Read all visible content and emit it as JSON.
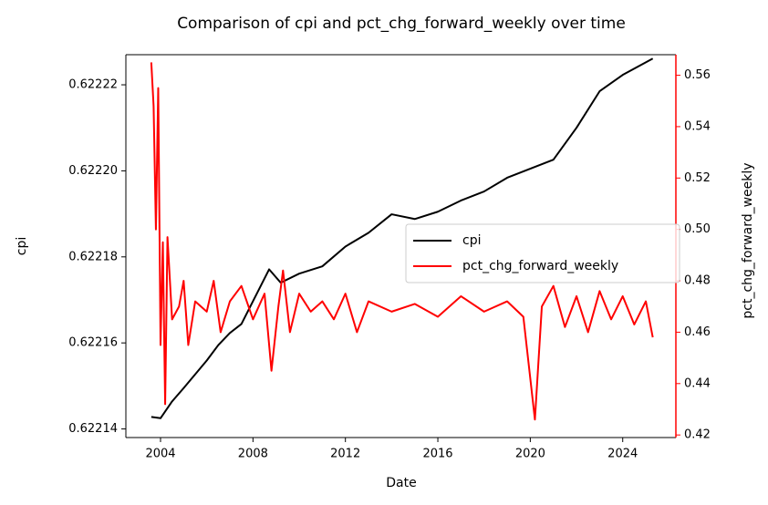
{
  "chart_data": {
    "type": "line",
    "title": "Comparison of cpi and pct_chg_forward_weekly over time",
    "x_label": "Date",
    "y_label": "cpi",
    "y2_label": "pct_chg_forward_weekly",
    "xlim": [
      2002.5,
      2026.3
    ],
    "xticks": [
      2004,
      2008,
      2012,
      2016,
      2020,
      2024
    ],
    "ylim": [
      0.622138,
      0.622227
    ],
    "yticks": [
      0.62214,
      0.62216,
      0.62218,
      {
        "value": 0.6222,
        "label": "0.62220"
      },
      0.62222
    ],
    "y2lim": [
      0.419,
      0.568
    ],
    "y2ticks": [
      0.42,
      0.44,
      0.46,
      0.48,
      {
        "value": 0.5,
        "label": "0.50"
      },
      0.52,
      0.54,
      0.56
    ],
    "y2_color": "red",
    "legend": "center right",
    "series": [
      {
        "name": "cpi",
        "color": "black",
        "x": [
          2003.6,
          2004.0,
          2004.5,
          2005,
          2005.5,
          2006,
          2006.5,
          2007,
          2007.5,
          2008,
          2008.7,
          2009.2,
          2010,
          2011,
          2012,
          2013,
          2014,
          2015,
          2016,
          2017,
          2018,
          2019,
          2020,
          2021,
          2022,
          2023,
          2024,
          2025.3
        ],
        "values": [
          0.6221428,
          0.6221425,
          0.6221464,
          0.6221495,
          0.6221527,
          0.6221559,
          0.6221595,
          0.6221623,
          0.6221644,
          0.6221697,
          0.6221771,
          0.622174,
          0.6221761,
          0.6221778,
          0.6221824,
          0.6221856,
          0.6221899,
          0.6221888,
          0.6221905,
          0.6221931,
          0.6221952,
          0.6221984,
          0.6222005,
          0.6222026,
          0.62221,
          0.6222185,
          0.6222223,
          0.6222261
        ]
      },
      {
        "name": "pct_chg_forward_weekly",
        "color": "red",
        "axis": "y2",
        "x": [
          2003.6,
          2003.7,
          2003.8,
          2003.9,
          2004.0,
          2004.1,
          2004.2,
          2004.3,
          2004.5,
          2004.8,
          2005.0,
          2005.2,
          2005.5,
          2006,
          2006.3,
          2006.6,
          2007,
          2007.5,
          2008,
          2008.5,
          2008.8,
          2009.1,
          2009.3,
          2009.6,
          2010,
          2010.5,
          2011,
          2011.5,
          2012,
          2012.5,
          2013,
          2014,
          2015,
          2016,
          2017,
          2018,
          2019,
          2019.7,
          2020.2,
          2020.5,
          2021,
          2021.5,
          2022,
          2022.5,
          2023,
          2023.5,
          2024,
          2024.5,
          2025,
          2025.3
        ],
        "values": [
          0.565,
          0.548,
          0.5,
          0.555,
          0.455,
          0.495,
          0.432,
          0.497,
          0.465,
          0.47,
          0.48,
          0.455,
          0.472,
          0.468,
          0.48,
          0.46,
          0.472,
          0.478,
          0.465,
          0.475,
          0.445,
          0.47,
          0.484,
          0.46,
          0.475,
          0.468,
          0.472,
          0.465,
          0.475,
          0.46,
          0.472,
          0.468,
          0.471,
          0.466,
          0.474,
          0.468,
          0.472,
          0.466,
          0.426,
          0.47,
          0.478,
          0.462,
          0.474,
          0.46,
          0.476,
          0.465,
          0.474,
          0.463,
          0.472,
          0.458
        ]
      }
    ]
  }
}
